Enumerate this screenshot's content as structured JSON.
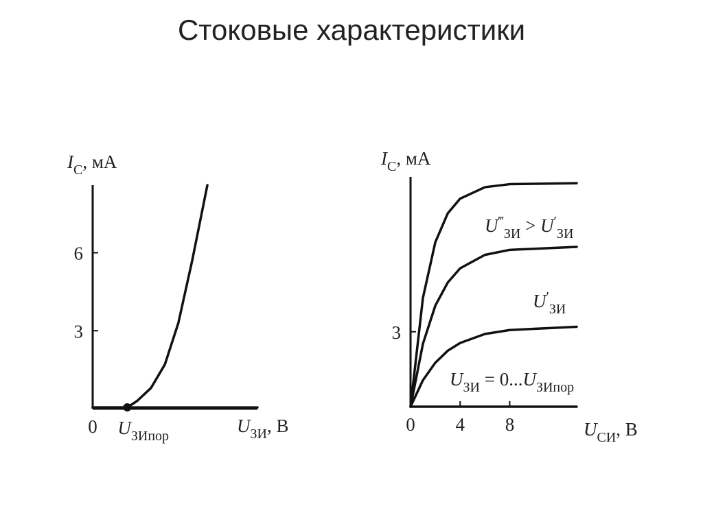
{
  "title": "Стоковые характеристики",
  "chart_data": [
    {
      "type": "line",
      "ylabel": [
        {
          "t": "I",
          "s": "i"
        },
        {
          "t": "С",
          "s": "sub"
        },
        {
          "t": ", мА",
          "s": "n"
        }
      ],
      "xlabel": [
        {
          "t": "U",
          "s": "i"
        },
        {
          "t": "ЗИ",
          "s": "sub"
        },
        {
          "t": ", В",
          "s": "n"
        }
      ],
      "xlim": [
        0,
        10
      ],
      "ylim": [
        0,
        8.6
      ],
      "xticks": [
        0,
        {
          "value": 2.1,
          "label": [
            {
              "t": "U",
              "s": "i"
            },
            {
              "t": "ЗИпор",
              "s": "sub"
            }
          ]
        }
      ],
      "yticks": [
        3,
        6
      ],
      "threshold_marker": true,
      "series": [
        {
          "color": "#111111",
          "x": [
            0,
            1,
            2.1,
            2.7,
            3.54,
            4.38,
            5.2,
            6.04,
            6.96
          ],
          "values": [
            0.05,
            0.05,
            0.05,
            0.3,
            0.8,
            1.7,
            3.3,
            5.7,
            8.6
          ]
        },
        {
          "color": "#111111",
          "x": [
            0,
            10
          ],
          "values": [
            0.05,
            0.05
          ]
        }
      ]
    },
    {
      "type": "line",
      "ylabel": [
        {
          "t": "I",
          "s": "i"
        },
        {
          "t": "С",
          "s": "sub"
        },
        {
          "t": ", мА",
          "s": "n"
        }
      ],
      "xlabel": [
        {
          "t": "U",
          "s": "i"
        },
        {
          "t": "СИ",
          "s": "sub"
        },
        {
          "t": ", В",
          "s": "n"
        }
      ],
      "xlim": [
        0,
        13.4
      ],
      "ylim": [
        0,
        9.2
      ],
      "xticks": [
        0,
        4,
        8
      ],
      "yticks": [
        3
      ],
      "x": [
        0,
        1,
        2,
        3,
        4,
        6,
        8,
        13.4
      ],
      "series": [
        {
          "color": "#111111",
          "values": [
            0,
            4.36,
            6.59,
            7.74,
            8.33,
            8.79,
            8.91,
            8.95
          ]
        },
        {
          "color": "#111111",
          "values": [
            0,
            2.52,
            4.05,
            4.97,
            5.54,
            6.08,
            6.28,
            6.4
          ]
        },
        {
          "color": "#111111",
          "values": [
            0,
            1.06,
            1.76,
            2.24,
            2.55,
            2.91,
            3.07,
            3.2
          ]
        },
        {
          "color": "#111111",
          "values": [
            0,
            0,
            0,
            0,
            0,
            0,
            0,
            0
          ]
        }
      ],
      "annotations": [
        [
          {
            "t": "U",
            "s": "i"
          },
          {
            "t": "‴",
            "s": "sup"
          },
          {
            "t": "ЗИ",
            "s": "sub"
          },
          {
            "t": " > ",
            "s": "n"
          },
          {
            "t": "U",
            "s": "i"
          },
          {
            "t": "′",
            "s": "sup"
          },
          {
            "t": "ЗИ",
            "s": "sub"
          }
        ],
        [
          {
            "t": "U",
            "s": "i"
          },
          {
            "t": "′",
            "s": "sup"
          },
          {
            "t": "ЗИ",
            "s": "sub"
          }
        ],
        [
          {
            "t": "U",
            "s": "i"
          },
          {
            "t": "ЗИ",
            "s": "sub"
          },
          {
            "t": " = 0...",
            "s": "n"
          },
          {
            "t": "U",
            "s": "i"
          },
          {
            "t": "ЗИпор",
            "s": "sub"
          }
        ]
      ]
    }
  ]
}
